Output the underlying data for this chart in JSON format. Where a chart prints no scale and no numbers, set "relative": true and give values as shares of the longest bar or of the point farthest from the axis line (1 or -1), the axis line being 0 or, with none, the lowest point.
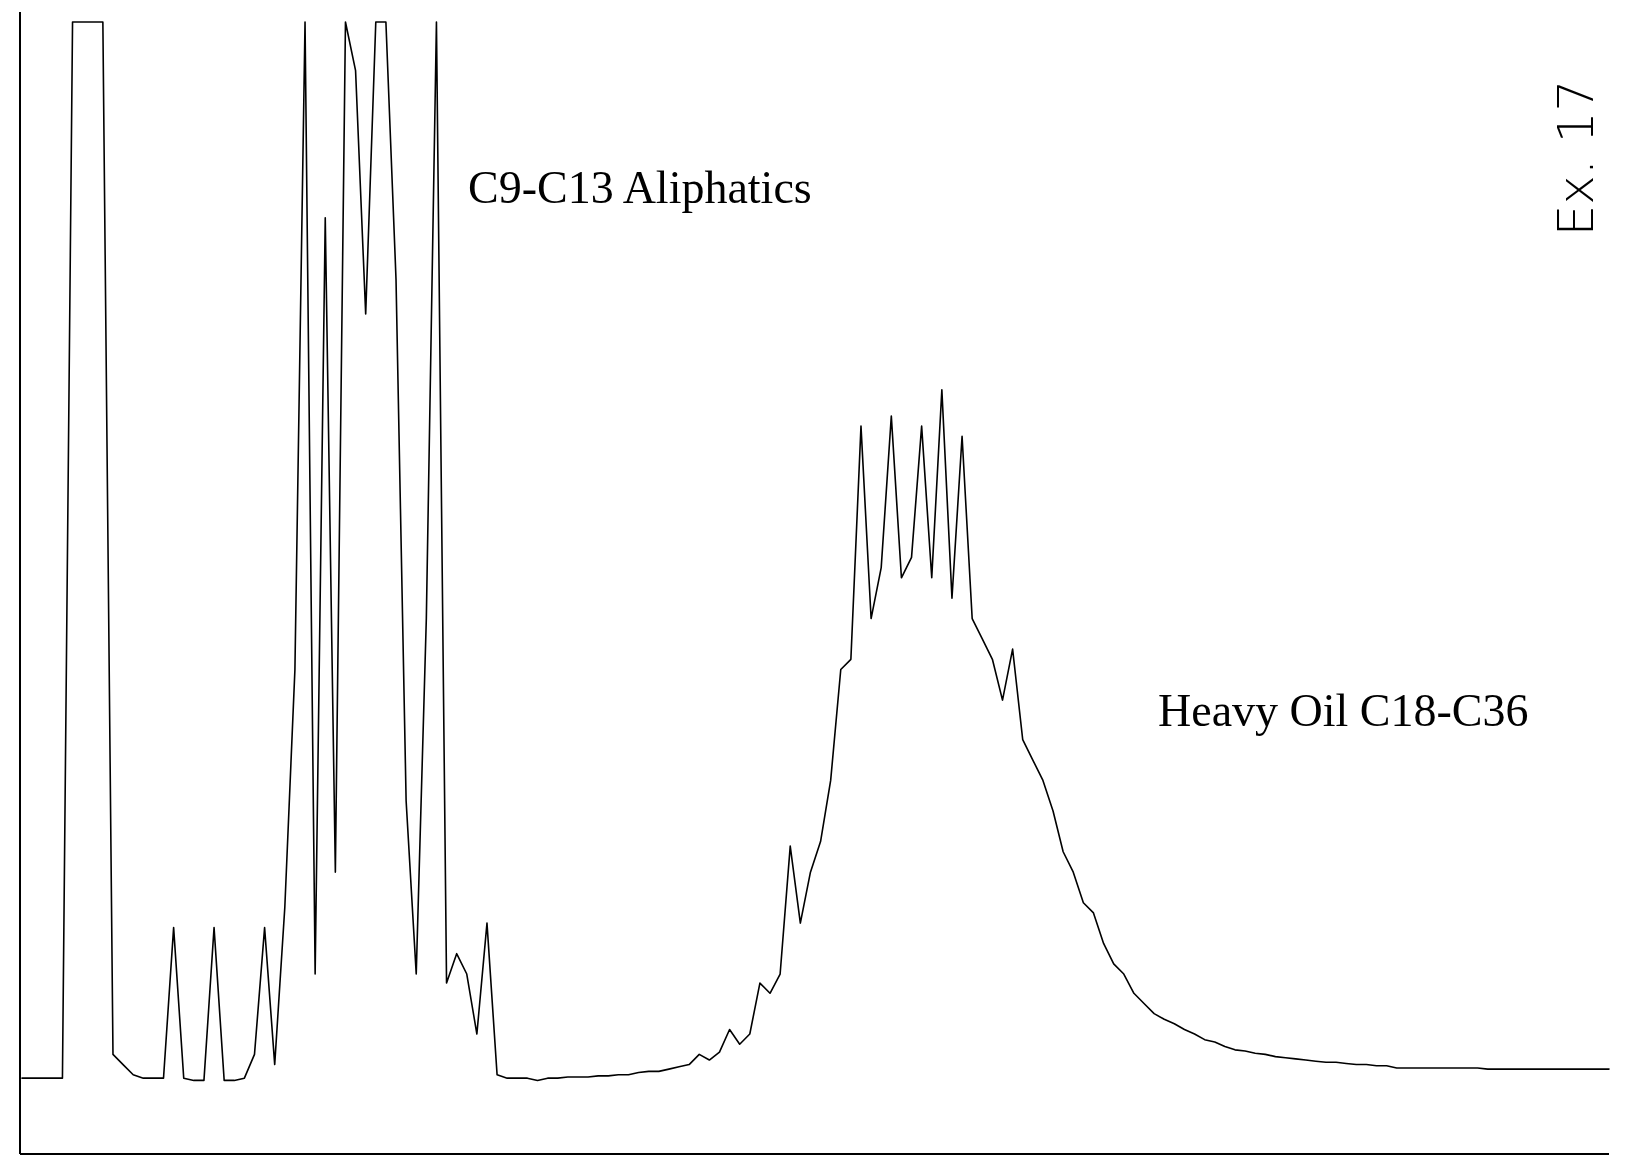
{
  "chart_data": {
    "type": "line",
    "relative": true,
    "categories": [
      null,
      null,
      null,
      null,
      null,
      null,
      null,
      null,
      null,
      null,
      null,
      null,
      null,
      null,
      null,
      null,
      null,
      null,
      null,
      null,
      null,
      null,
      null,
      null,
      null,
      null,
      null,
      null,
      null,
      null,
      null,
      null,
      null,
      null,
      null,
      null,
      null,
      null,
      null,
      null,
      null,
      null,
      null,
      null,
      null,
      null,
      null,
      null,
      null,
      null,
      null,
      null,
      null,
      null,
      null,
      null,
      null,
      null,
      null,
      null,
      null,
      null,
      null,
      null,
      null,
      null,
      null,
      null,
      null,
      null,
      null,
      null,
      null,
      null,
      null,
      null,
      null,
      null,
      null,
      null,
      null,
      null,
      null,
      null,
      null,
      null,
      null,
      null,
      null,
      null,
      null,
      null,
      null,
      null,
      null,
      null,
      null,
      null,
      null,
      null,
      null,
      null,
      null,
      null,
      null,
      null,
      null,
      null,
      null,
      null,
      null,
      null,
      null,
      null,
      null,
      null,
      null,
      null,
      null,
      null,
      null,
      null,
      null,
      null,
      null,
      null,
      null,
      null,
      null,
      null,
      null,
      null,
      null,
      null,
      null,
      null,
      null,
      null,
      null,
      null,
      null,
      null,
      null,
      null,
      null,
      null,
      null,
      null,
      null,
      null,
      null,
      null,
      null,
      null,
      null,
      null,
      null,
      null
    ],
    "series": [
      {
        "color": "#000000",
        "values": [
          0.067,
          0.067,
          0.067,
          0.067,
          0.067,
          1,
          1,
          1,
          1,
          0.088,
          0.079,
          0.07,
          0.067,
          0.067,
          0.067,
          0.2,
          0.067,
          0.065,
          0.065,
          0.2,
          0.065,
          0.065,
          0.067,
          0.088,
          0.2,
          0.079,
          0.218,
          0.428,
          1,
          0.159,
          0.827,
          0.249,
          1,
          0.957,
          0.742,
          1,
          1,
          0.773,
          0.312,
          0.159,
          0.473,
          1,
          0.151,
          0.177,
          0.159,
          0.106,
          0.204,
          0.07,
          0.067,
          0.067,
          0.067,
          0.065,
          0.067,
          0.067,
          0.068,
          0.068,
          0.068,
          0.069,
          0.069,
          0.07,
          0.07,
          0.072,
          0.073,
          0.073,
          0.075,
          0.077,
          0.079,
          0.088,
          0.083,
          0.09,
          0.11,
          0.097,
          0.106,
          0.151,
          0.142,
          0.159,
          0.272,
          0.204,
          0.249,
          0.276,
          0.33,
          0.428,
          0.437,
          0.643,
          0.473,
          0.518,
          0.652,
          0.509,
          0.527,
          0.643,
          0.509,
          0.675,
          0.491,
          0.634,
          0.473,
          0.455,
          0.437,
          0.401,
          0.446,
          0.366,
          0.348,
          0.33,
          0.303,
          0.267,
          0.249,
          0.222,
          0.213,
          0.186,
          0.168,
          0.159,
          0.142,
          0.133,
          0.124,
          0.119,
          0.115,
          0.11,
          0.106,
          0.101,
          0.099,
          0.095,
          0.092,
          0.091,
          0.089,
          0.088,
          0.086,
          0.085,
          0.084,
          0.083,
          0.082,
          0.081,
          0.081,
          0.08,
          0.079,
          0.079,
          0.078,
          0.078,
          0.076,
          0.076,
          0.076,
          0.076,
          0.076,
          0.076,
          0.076,
          0.076,
          0.076,
          0.075,
          0.075,
          0.075,
          0.075,
          0.075,
          0.075,
          0.075,
          0.075,
          0.075,
          0.075,
          0.075,
          0.075,
          0.075
        ]
      }
    ],
    "annotations": [
      "C9-C13 Aliphatics",
      "Heavy Oil C18-C36",
      "Ex. 17"
    ]
  }
}
